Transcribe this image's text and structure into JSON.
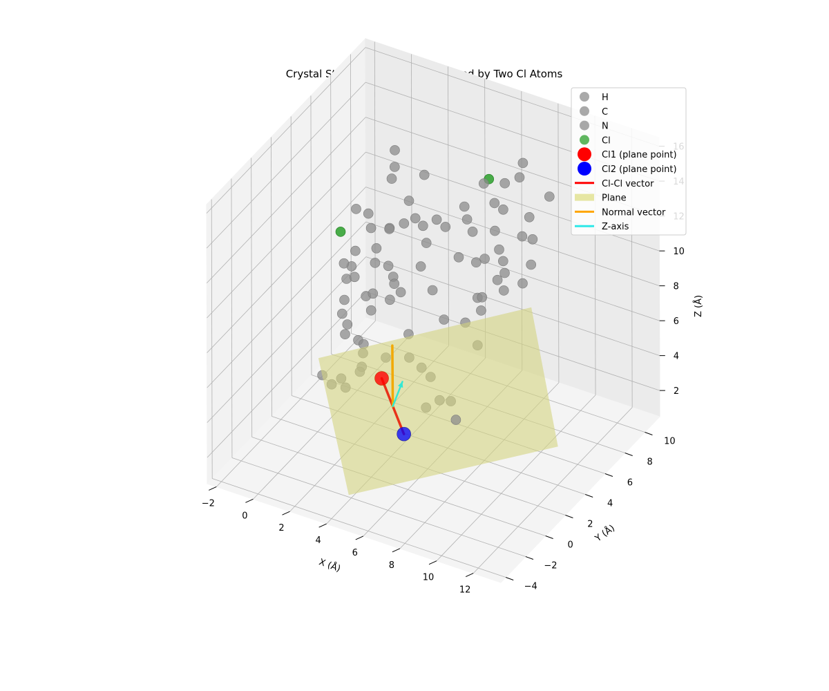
{
  "chart_data": {
    "type": "scatter",
    "title": "Crystal Structure with Plane Defined by Two Cl Atoms",
    "xlabel": "X (Å)",
    "ylabel": "Y (Å)",
    "zlabel": "Z (Å)",
    "xlim": [
      -2.5,
      13.5
    ],
    "ylim": [
      -4.5,
      11.5
    ],
    "zlim": [
      0.5,
      16.5
    ],
    "x_ticks": [
      -2,
      0,
      2,
      4,
      6,
      8,
      10,
      12
    ],
    "y_ticks": [
      -4,
      -2,
      0,
      2,
      4,
      6,
      8,
      10
    ],
    "z_ticks": [
      2,
      4,
      6,
      8,
      10,
      12,
      14,
      16
    ],
    "x_tick_labels": [
      "−2",
      "0",
      "2",
      "4",
      "6",
      "8",
      "10",
      "12"
    ],
    "y_tick_labels": [
      "−4",
      "−2",
      "0",
      "2",
      "4",
      "6",
      "8",
      "10"
    ],
    "z_tick_labels": [
      "2",
      "4",
      "6",
      "8",
      "10",
      "12",
      "14",
      "16"
    ],
    "grid": true,
    "legend_position": "top-right",
    "colors": {
      "atom": "#8c8c8c",
      "cl": "#2ca02c",
      "cl1": "#ff0000",
      "cl2": "#0000ff",
      "clcl_vector": "#e8321a",
      "plane": "#d4d480",
      "normal": "#f2a900",
      "zaxis": "#33e8d4"
    },
    "legend": [
      {
        "label": "H",
        "kind": "marker",
        "color": "#8c8c8c",
        "size": "small"
      },
      {
        "label": "C",
        "kind": "marker",
        "color": "#8c8c8c",
        "size": "small"
      },
      {
        "label": "N",
        "kind": "marker",
        "color": "#8c8c8c",
        "size": "small"
      },
      {
        "label": "Cl",
        "kind": "marker",
        "color": "#2ca02c",
        "size": "small"
      },
      {
        "label": "Cl1 (plane point)",
        "kind": "marker",
        "color": "#ff0000",
        "size": "large"
      },
      {
        "label": "Cl2 (plane point)",
        "kind": "marker",
        "color": "#0000ff",
        "size": "large"
      },
      {
        "label": "Cl-Cl vector",
        "kind": "line",
        "color": "#ff0000"
      },
      {
        "label": "Plane",
        "kind": "patch",
        "color": "#e6e6a3"
      },
      {
        "label": "Normal vector",
        "kind": "line",
        "color": "#ffa500"
      },
      {
        "label": "Z-axis",
        "kind": "line",
        "color": "#2ee8e8"
      }
    ],
    "plane_corners": [
      [
        -0.6,
        3.2,
        3.8
      ],
      [
        4.4,
        -3.0,
        1.4
      ],
      [
        11.8,
        4.4,
        2.4
      ],
      [
        7.0,
        10.6,
        5.0
      ]
    ],
    "cl1": [
      3.5,
      2.0,
      4.8
    ],
    "cl2": [
      5.3,
      0.9,
      2.9
    ],
    "clcl_vector": [
      [
        3.5,
        2.0,
        4.8
      ],
      [
        5.3,
        0.9,
        2.9
      ]
    ],
    "normal_vector": [
      [
        4.4,
        1.45,
        3.85
      ],
      [
        4.3,
        1.6,
        7.2
      ]
    ],
    "z_axis": [
      [
        4.4,
        1.45,
        3.85
      ],
      [
        4.9,
        1.5,
        5.4
      ]
    ],
    "cl_atoms": [
      [
        0.3,
        3.8,
        11.0
      ],
      [
        5.3,
        9.5,
        12.4
      ]
    ],
    "atoms": [
      [
        0.1,
        2.3,
        3.6
      ],
      [
        0.5,
        2.5,
        3.1
      ],
      [
        0.8,
        2.9,
        3.3
      ],
      [
        1.2,
        2.6,
        3.1
      ],
      [
        1.6,
        3.5,
        3.9
      ],
      [
        2.2,
        2.2,
        4.6
      ],
      [
        1.3,
        3.7,
        5.2
      ],
      [
        0.8,
        3.3,
        5.6
      ],
      [
        2.7,
        1.6,
        6.2
      ],
      [
        3.4,
        2.6,
        5.6
      ],
      [
        4.3,
        3.3,
        5.5
      ],
      [
        2.3,
        2.4,
        6.1
      ],
      [
        1.2,
        2.8,
        6.6
      ],
      [
        0.7,
        3.2,
        6.8
      ],
      [
        -0.1,
        4.9,
        6.3
      ],
      [
        1.9,
        3.9,
        7.0
      ],
      [
        4.1,
        3.6,
        6.6
      ],
      [
        0.6,
        6.7,
        7.6
      ],
      [
        1.4,
        4.3,
        7.4
      ],
      [
        0.4,
        4.2,
        8.1
      ],
      [
        -0.3,
        6.0,
        7.5
      ],
      [
        -0.2,
        6.2,
        8.3
      ],
      [
        2.6,
        4.5,
        7.5
      ],
      [
        2.0,
        3.9,
        8.0
      ],
      [
        1.0,
        3.9,
        8.6
      ],
      [
        0.1,
        4.5,
        8.7
      ],
      [
        2.3,
        4.9,
        9.1
      ],
      [
        3.0,
        4.1,
        9.2
      ],
      [
        1.6,
        5.0,
        9.8
      ],
      [
        3.3,
        4.3,
        8.3
      ],
      [
        4.6,
        5.1,
        8.4
      ],
      [
        3.8,
        5.4,
        9.3
      ],
      [
        3.6,
        3.1,
        9.6
      ],
      [
        1.2,
        5.2,
        10.7
      ],
      [
        2.1,
        5.4,
        10.9
      ],
      [
        2.2,
        5.2,
        11.0
      ],
      [
        3.6,
        6.0,
        11.2
      ],
      [
        4.5,
        6.6,
        11.1
      ],
      [
        4.0,
        5.6,
        10.6
      ],
      [
        3.0,
        5.2,
        11.6
      ],
      [
        3.4,
        5.6,
        11.8
      ],
      [
        4.4,
        5.9,
        11.9
      ],
      [
        5.3,
        7.3,
        11.4
      ],
      [
        1.0,
        5.3,
        11.4
      ],
      [
        3.0,
        5.7,
        12.6
      ],
      [
        1.9,
        6.0,
        13.3
      ],
      [
        1.9,
        6.3,
        13.8
      ],
      [
        1.8,
        6.5,
        14.6
      ],
      [
        3.3,
        6.7,
        13.6
      ],
      [
        -0.1,
        6.1,
        10.8
      ],
      [
        5.1,
        7.4,
        12.0
      ],
      [
        5.4,
        8.8,
        12.6
      ],
      [
        6.6,
        8.7,
        13.1
      ],
      [
        6.2,
        8.4,
        12.0
      ],
      [
        6.7,
        10.0,
        12.7
      ],
      [
        7.1,
        9.6,
        13.9
      ],
      [
        5.6,
        7.3,
        10.8
      ],
      [
        6.0,
        8.8,
        10.1
      ],
      [
        6.2,
        7.4,
        9.4
      ],
      [
        6.5,
        8.3,
        9.5
      ],
      [
        5.0,
        7.0,
        9.3
      ],
      [
        6.5,
        8.7,
        8.6
      ],
      [
        5.3,
        8.2,
        8.4
      ],
      [
        6.4,
        8.9,
        11.4
      ],
      [
        7.5,
        9.5,
        11.0
      ],
      [
        8.0,
        10.6,
        11.7
      ],
      [
        7.0,
        9.7,
        9.6
      ],
      [
        7.4,
        10.0,
        9.4
      ],
      [
        7.1,
        10.4,
        7.6
      ],
      [
        6.2,
        9.4,
        7.4
      ],
      [
        5.7,
        9.6,
        6.7
      ],
      [
        6.1,
        9.5,
        6.3
      ],
      [
        5.4,
        8.6,
        6.2
      ],
      [
        4.3,
        6.8,
        5.6
      ],
      [
        5.3,
        7.1,
        5.6
      ],
      [
        5.1,
        8.7,
        6.0
      ],
      [
        6.8,
        10.1,
        6.6
      ],
      [
        5.4,
        8.5,
        5.5
      ],
      [
        4.1,
        4.9,
        3.9
      ],
      [
        4.7,
        4.7,
        3.7
      ],
      [
        5.1,
        3.5,
        2.8
      ],
      [
        6.4,
        4.1,
        2.2
      ],
      [
        5.8,
        4.7,
        2.7
      ],
      [
        5.3,
        4.5,
        2.7
      ],
      [
        5.8,
        7.4,
        4.3
      ]
    ]
  }
}
